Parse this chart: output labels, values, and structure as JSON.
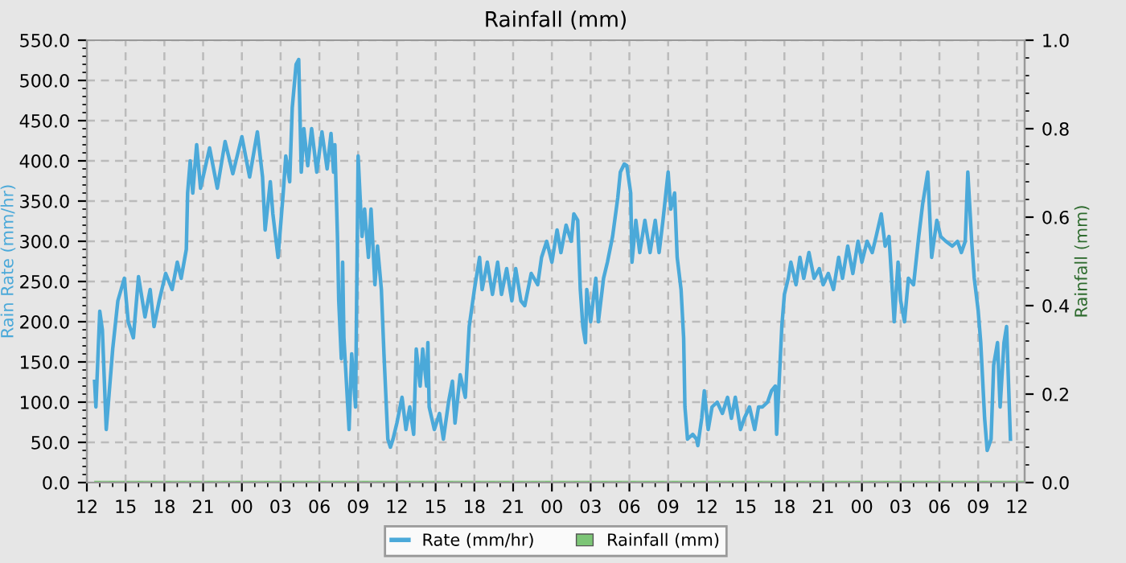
{
  "chart_data": {
    "type": "line",
    "title": "Rainfall (mm)",
    "ylabel": "Rain Rate (mm/hr)",
    "y2label": "Rainfall (mm)",
    "xlim": [
      12,
      84.6
    ],
    "xticks": [
      {
        "value": 12,
        "label": "12"
      },
      {
        "value": 15,
        "label": "15"
      },
      {
        "value": 18,
        "label": "18"
      },
      {
        "value": 21,
        "label": "21"
      },
      {
        "value": 24,
        "label": "00"
      },
      {
        "value": 27,
        "label": "03"
      },
      {
        "value": 30,
        "label": "06"
      },
      {
        "value": 33,
        "label": "09"
      },
      {
        "value": 36,
        "label": "12"
      },
      {
        "value": 39,
        "label": "15"
      },
      {
        "value": 42,
        "label": "18"
      },
      {
        "value": 45,
        "label": "21"
      },
      {
        "value": 48,
        "label": "00"
      },
      {
        "value": 51,
        "label": "03"
      },
      {
        "value": 54,
        "label": "06"
      },
      {
        "value": 57,
        "label": "09"
      },
      {
        "value": 60,
        "label": "12"
      },
      {
        "value": 63,
        "label": "15"
      },
      {
        "value": 66,
        "label": "18"
      },
      {
        "value": 69,
        "label": "21"
      },
      {
        "value": 72,
        "label": "00"
      },
      {
        "value": 75,
        "label": "03"
      },
      {
        "value": 78,
        "label": "06"
      },
      {
        "value": 81,
        "label": "09"
      },
      {
        "value": 84,
        "label": "12"
      }
    ],
    "ylim": [
      0,
      550
    ],
    "yticks": [
      {
        "value": 0,
        "label": "0.0"
      },
      {
        "value": 50,
        "label": "50.0"
      },
      {
        "value": 100,
        "label": "100.0"
      },
      {
        "value": 150,
        "label": "150.0"
      },
      {
        "value": 200,
        "label": "200.0"
      },
      {
        "value": 250,
        "label": "250.0"
      },
      {
        "value": 300,
        "label": "300.0"
      },
      {
        "value": 350,
        "label": "350.0"
      },
      {
        "value": 400,
        "label": "400.0"
      },
      {
        "value": 450,
        "label": "450.0"
      },
      {
        "value": 500,
        "label": "500.0"
      },
      {
        "value": 550,
        "label": "550.0"
      }
    ],
    "y2lim": [
      0,
      1
    ],
    "y2ticks": [
      {
        "value": 0,
        "label": "0.0"
      },
      {
        "value": 0.2,
        "label": "0.2"
      },
      {
        "value": 0.4,
        "label": "0.4"
      },
      {
        "value": 0.6,
        "label": "0.6"
      },
      {
        "value": 0.8,
        "label": "0.8"
      },
      {
        "value": 1,
        "label": "1.0"
      }
    ],
    "grid": true,
    "legend": "bottom",
    "series": [
      {
        "name": "Rate (mm/hr)",
        "color": "#4ba9d9",
        "x": [
          12.6,
          12.7,
          13.0,
          13.2,
          13.5,
          14.0,
          14.4,
          14.9,
          15.2,
          15.6,
          16.0,
          16.5,
          16.9,
          17.2,
          17.6,
          18.1,
          18.6,
          19.0,
          19.3,
          19.7,
          19.8,
          20.0,
          20.2,
          20.5,
          20.8,
          21.5,
          22.1,
          22.7,
          23.3,
          24.0,
          24.6,
          25.2,
          25.6,
          25.8,
          26.2,
          26.4,
          26.8,
          27.2,
          27.4,
          27.7,
          27.9,
          28.2,
          28.4,
          28.6,
          28.8,
          29.1,
          29.4,
          29.8,
          30.2,
          30.6,
          30.9,
          31.1,
          31.2,
          31.4,
          31.5,
          31.7,
          31.8,
          31.9,
          32.2,
          32.3,
          32.5,
          32.8,
          33.0,
          33.3,
          33.5,
          33.8,
          34.0,
          34.3,
          34.5,
          34.8,
          35.0,
          35.3,
          35.5,
          35.7,
          36.0,
          36.4,
          36.7,
          37.0,
          37.3,
          37.5,
          37.8,
          38.0,
          38.3,
          38.4,
          38.5,
          38.9,
          39.3,
          39.6,
          40.0,
          40.3,
          40.5,
          40.9,
          41.3,
          41.6,
          42.0,
          42.4,
          42.6,
          43.0,
          43.4,
          43.8,
          44.1,
          44.5,
          44.9,
          45.2,
          45.6,
          45.9,
          46.4,
          46.9,
          47.2,
          47.6,
          48.0,
          48.4,
          48.7,
          49.1,
          49.5,
          49.7,
          50.0,
          50.2,
          50.4,
          50.6,
          50.7,
          51.0,
          51.4,
          51.6,
          52.0,
          52.3,
          52.7,
          53.1,
          53.3,
          53.6,
          53.8,
          54.1,
          54.2,
          54.5,
          54.8,
          55.2,
          55.6,
          56.0,
          56.3,
          56.6,
          57.0,
          57.2,
          57.5,
          57.7,
          58.0,
          58.2,
          58.3,
          58.5,
          58.9,
          59.2,
          59.3,
          59.6,
          59.8,
          60.1,
          60.4,
          60.8,
          61.2,
          61.6,
          61.9,
          62.2,
          62.6,
          62.9,
          63.3,
          63.7,
          64.0,
          64.3,
          64.7,
          65.0,
          65.3,
          65.4,
          65.5,
          65.8,
          66.0,
          66.3,
          66.5,
          66.9,
          67.2,
          67.5,
          67.9,
          68.3,
          68.7,
          69.0,
          69.4,
          69.8,
          70.2,
          70.5,
          70.9,
          71.3,
          71.7,
          72.0,
          72.4,
          72.8,
          73.1,
          73.5,
          73.8,
          74.1,
          74.3,
          74.5,
          74.8,
          75.0,
          75.3,
          75.6,
          76.0,
          76.4,
          76.7,
          77.1,
          77.4,
          77.8,
          78.1,
          78.5,
          79.0,
          79.4,
          79.7,
          80.0,
          80.2,
          80.5,
          80.7,
          81.0,
          81.2,
          81.5,
          81.7,
          82.0,
          82.2,
          82.5,
          82.7,
          83.0,
          83.2,
          83.5
        ],
        "values": [
          126,
          94,
          213,
          190,
          66,
          166,
          226,
          254,
          200,
          180,
          256,
          206,
          240,
          194,
          226,
          260,
          240,
          274,
          254,
          290,
          360,
          400,
          360,
          420,
          366,
          416,
          366,
          424,
          384,
          430,
          380,
          436,
          380,
          314,
          374,
          334,
          280,
          360,
          406,
          374,
          466,
          520,
          526,
          386,
          440,
          394,
          440,
          386,
          436,
          390,
          434,
          386,
          420,
          306,
          226,
          154,
          274,
          180,
          94,
          66,
          160,
          94,
          406,
          306,
          340,
          280,
          340,
          246,
          294,
          240,
          160,
          54,
          44,
          54,
          74,
          106,
          66,
          94,
          60,
          166,
          120,
          166,
          120,
          174,
          94,
          66,
          86,
          54,
          100,
          126,
          74,
          134,
          106,
          194,
          240,
          280,
          240,
          274,
          234,
          274,
          234,
          266,
          226,
          266,
          226,
          220,
          260,
          246,
          280,
          300,
          274,
          314,
          286,
          320,
          300,
          334,
          326,
          240,
          194,
          174,
          240,
          200,
          254,
          200,
          254,
          274,
          306,
          354,
          386,
          396,
          394,
          360,
          274,
          326,
          286,
          326,
          286,
          326,
          286,
          326,
          386,
          340,
          360,
          280,
          240,
          180,
          94,
          54,
          60,
          54,
          46,
          80,
          114,
          66,
          94,
          100,
          86,
          106,
          80,
          106,
          66,
          80,
          94,
          66,
          94,
          94,
          100,
          114,
          120,
          60,
          94,
          194,
          234,
          254,
          274,
          246,
          280,
          254,
          286,
          254,
          266,
          246,
          260,
          240,
          280,
          254,
          294,
          260,
          300,
          274,
          300,
          286,
          306,
          334,
          294,
          306,
          254,
          200,
          274,
          226,
          200,
          254,
          246,
          306,
          346,
          386,
          280,
          326,
          306,
          300,
          294,
          300,
          286,
          300,
          386,
          300,
          254,
          214,
          174,
          80,
          40,
          54,
          146,
          174,
          94,
          174,
          194,
          54
        ]
      },
      {
        "name": "Rainfall (mm)",
        "color": "#7cc576",
        "type": "line",
        "axis": "y2",
        "x": [
          12.7,
          84.5
        ],
        "values": [
          0,
          0
        ]
      }
    ]
  }
}
